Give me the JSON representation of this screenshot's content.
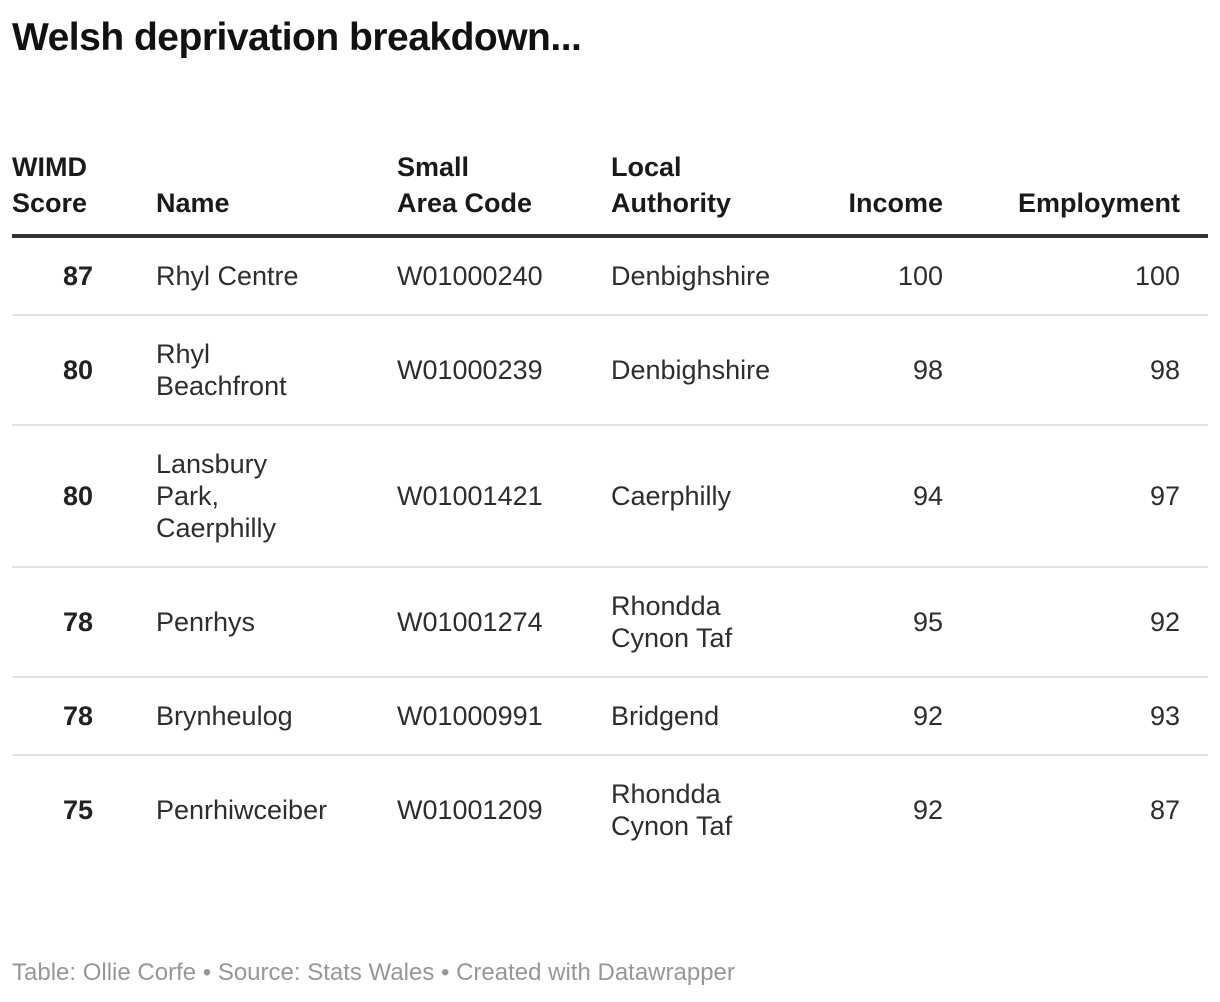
{
  "title": "Welsh deprivation breakdown...",
  "table": {
    "headers": [
      "WIMD\nScore",
      "Name",
      "Small\nArea Code",
      "Local\nAuthority",
      "Income",
      "Employment"
    ],
    "rows": [
      {
        "wimd_score": "87",
        "name": "Rhyl Centre",
        "small_area_code": "W01000240",
        "local_authority": "Denbighshire",
        "income": "100",
        "employment": "100"
      },
      {
        "wimd_score": "80",
        "name": "Rhyl\nBeachfront",
        "small_area_code": "W01000239",
        "local_authority": "Denbighshire",
        "income": "98",
        "employment": "98"
      },
      {
        "wimd_score": "80",
        "name": "Lansbury\nPark,\nCaerphilly",
        "small_area_code": "W01001421",
        "local_authority": "Caerphilly",
        "income": "94",
        "employment": "97"
      },
      {
        "wimd_score": "78",
        "name": "Penrhys",
        "small_area_code": "W01001274",
        "local_authority": "Rhondda\nCynon Taf",
        "income": "95",
        "employment": "92"
      },
      {
        "wimd_score": "78",
        "name": "Brynheulog",
        "small_area_code": "W01000991",
        "local_authority": "Bridgend",
        "income": "92",
        "employment": "93"
      },
      {
        "wimd_score": "75",
        "name": "Penrhiwceiber",
        "small_area_code": "W01001209",
        "local_authority": "Rhondda\nCynon Taf",
        "income": "92",
        "employment": "87"
      }
    ]
  },
  "footer": {
    "text": "Table: Ollie Corfe • Source: Stats Wales • Created with Datawrapper"
  },
  "colors": {
    "title_text": "#111111",
    "header_text": "#1a1a1a",
    "body_text": "#2e2e2e",
    "header_rule": "#333333",
    "row_rule": "#e2e2e2",
    "footer_text": "#979797",
    "background": "#ffffff"
  },
  "chart_data": {
    "type": "table",
    "title": "Welsh deprivation breakdown...",
    "columns": [
      "WIMD Score",
      "Name",
      "Small Area Code",
      "Local Authority",
      "Income",
      "Employment"
    ],
    "rows": [
      [
        87,
        "Rhyl Centre",
        "W01000240",
        "Denbighshire",
        100,
        100
      ],
      [
        80,
        "Rhyl Beachfront",
        "W01000239",
        "Denbighshire",
        98,
        98
      ],
      [
        80,
        "Lansbury Park, Caerphilly",
        "W01001421",
        "Caerphilly",
        94,
        97
      ],
      [
        78,
        "Penrhys",
        "W01001274",
        "Rhondda Cynon Taf",
        95,
        92
      ],
      [
        78,
        "Brynheulog",
        "W01000991",
        "Bridgend",
        92,
        93
      ],
      [
        75,
        "Penrhiwceiber",
        "W01001209",
        "Rhondda Cynon Taf",
        92,
        87
      ]
    ],
    "layout_hints": {
      "numeric_right_aligned": [
        "WIMD Score",
        "Income",
        "Employment"
      ],
      "bold_columns": [
        "WIMD Score"
      ],
      "grid": "horizontal-rules-only"
    },
    "footnote": "Table: Ollie Corfe • Source: Stats Wales • Created with Datawrapper"
  }
}
